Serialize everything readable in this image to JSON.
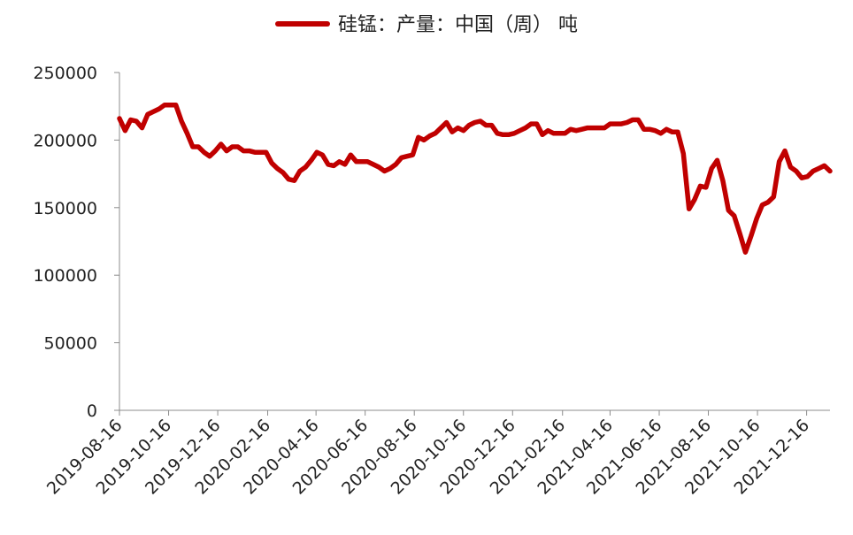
{
  "chart_data": {
    "type": "line",
    "legend": {
      "label": "硅锰：产量：中国（周）  吨",
      "placement": "top-center"
    },
    "ylim": [
      0,
      250000
    ],
    "yticks": [
      "0",
      "50000",
      "100000",
      "150000",
      "200000",
      "250000"
    ],
    "xtick_labels": [
      "2019-08-16",
      "2019-10-16",
      "2019-12-16",
      "2020-02-16",
      "2020-04-16",
      "2020-06-16",
      "2020-08-16",
      "2020-10-16",
      "2020-12-16",
      "2021-02-16",
      "2021-04-16",
      "2021-06-16",
      "2021-08-16",
      "2021-10-16",
      "2021-12-16"
    ],
    "grid": false,
    "line_color": "#c00000",
    "series": [
      {
        "name": "硅锰：产量：中国（周）",
        "points": [
          [
            "2019-08-16",
            216000
          ],
          [
            "2019-08-23",
            207000
          ],
          [
            "2019-08-30",
            215000
          ],
          [
            "2019-09-06",
            214000
          ],
          [
            "2019-09-13",
            209000
          ],
          [
            "2019-09-20",
            219000
          ],
          [
            "2019-09-27",
            221000
          ],
          [
            "2019-10-04",
            223000
          ],
          [
            "2019-10-11",
            226000
          ],
          [
            "2019-10-18",
            226000
          ],
          [
            "2019-10-25",
            226000
          ],
          [
            "2019-11-01",
            214000
          ],
          [
            "2019-11-08",
            205000
          ],
          [
            "2019-11-15",
            195000
          ],
          [
            "2019-11-22",
            195000
          ],
          [
            "2019-11-29",
            191000
          ],
          [
            "2019-12-06",
            188000
          ],
          [
            "2019-12-13",
            192000
          ],
          [
            "2019-12-20",
            197000
          ],
          [
            "2019-12-27",
            192000
          ],
          [
            "2020-01-03",
            195000
          ],
          [
            "2020-01-10",
            195000
          ],
          [
            "2020-01-17",
            192000
          ],
          [
            "2020-01-24",
            192000
          ],
          [
            "2020-01-31",
            191000
          ],
          [
            "2020-02-07",
            191000
          ],
          [
            "2020-02-14",
            191000
          ],
          [
            "2020-02-21",
            183000
          ],
          [
            "2020-02-28",
            179000
          ],
          [
            "2020-03-06",
            176000
          ],
          [
            "2020-03-13",
            171000
          ],
          [
            "2020-03-20",
            170000
          ],
          [
            "2020-03-27",
            177000
          ],
          [
            "2020-04-03",
            180000
          ],
          [
            "2020-04-10",
            185000
          ],
          [
            "2020-04-17",
            191000
          ],
          [
            "2020-04-24",
            189000
          ],
          [
            "2020-05-01",
            182000
          ],
          [
            "2020-05-08",
            181000
          ],
          [
            "2020-05-15",
            184000
          ],
          [
            "2020-05-22",
            182000
          ],
          [
            "2020-05-29",
            189000
          ],
          [
            "2020-06-05",
            184000
          ],
          [
            "2020-06-12",
            184000
          ],
          [
            "2020-06-19",
            184000
          ],
          [
            "2020-06-26",
            182000
          ],
          [
            "2020-07-03",
            180000
          ],
          [
            "2020-07-10",
            177000
          ],
          [
            "2020-07-17",
            179000
          ],
          [
            "2020-07-24",
            182000
          ],
          [
            "2020-07-31",
            187000
          ],
          [
            "2020-08-07",
            188000
          ],
          [
            "2020-08-14",
            189000
          ],
          [
            "2020-08-21",
            202000
          ],
          [
            "2020-08-28",
            200000
          ],
          [
            "2020-09-04",
            203000
          ],
          [
            "2020-09-11",
            205000
          ],
          [
            "2020-09-18",
            209000
          ],
          [
            "2020-09-25",
            213000
          ],
          [
            "2020-10-02",
            206000
          ],
          [
            "2020-10-09",
            209000
          ],
          [
            "2020-10-16",
            207000
          ],
          [
            "2020-10-23",
            211000
          ],
          [
            "2020-10-30",
            213000
          ],
          [
            "2020-11-06",
            214000
          ],
          [
            "2020-11-13",
            211000
          ],
          [
            "2020-11-20",
            211000
          ],
          [
            "2020-11-27",
            205000
          ],
          [
            "2020-12-04",
            204000
          ],
          [
            "2020-12-11",
            204000
          ],
          [
            "2020-12-18",
            205000
          ],
          [
            "2020-12-25",
            207000
          ],
          [
            "2021-01-01",
            209000
          ],
          [
            "2021-01-08",
            212000
          ],
          [
            "2021-01-15",
            212000
          ],
          [
            "2021-01-22",
            204000
          ],
          [
            "2021-01-29",
            207000
          ],
          [
            "2021-02-05",
            205000
          ],
          [
            "2021-02-12",
            205000
          ],
          [
            "2021-02-19",
            205000
          ],
          [
            "2021-02-26",
            208000
          ],
          [
            "2021-03-05",
            207000
          ],
          [
            "2021-03-12",
            208000
          ],
          [
            "2021-03-19",
            209000
          ],
          [
            "2021-03-26",
            209000
          ],
          [
            "2021-04-02",
            209000
          ],
          [
            "2021-04-09",
            209000
          ],
          [
            "2021-04-16",
            212000
          ],
          [
            "2021-04-23",
            212000
          ],
          [
            "2021-04-30",
            212000
          ],
          [
            "2021-05-07",
            213000
          ],
          [
            "2021-05-14",
            215000
          ],
          [
            "2021-05-21",
            215000
          ],
          [
            "2021-05-28",
            208000
          ],
          [
            "2021-06-04",
            208000
          ],
          [
            "2021-06-11",
            207000
          ],
          [
            "2021-06-18",
            205000
          ],
          [
            "2021-06-25",
            208000
          ],
          [
            "2021-07-02",
            206000
          ],
          [
            "2021-07-09",
            206000
          ],
          [
            "2021-07-16",
            190000
          ],
          [
            "2021-07-23",
            149000
          ],
          [
            "2021-07-30",
            156000
          ],
          [
            "2021-08-06",
            166000
          ],
          [
            "2021-08-13",
            165000
          ],
          [
            "2021-08-20",
            179000
          ],
          [
            "2021-08-27",
            185000
          ],
          [
            "2021-09-03",
            170000
          ],
          [
            "2021-09-10",
            148000
          ],
          [
            "2021-09-17",
            144000
          ],
          [
            "2021-09-24",
            131000
          ],
          [
            "2021-10-01",
            117000
          ],
          [
            "2021-10-08",
            129000
          ],
          [
            "2021-10-15",
            142000
          ],
          [
            "2021-10-22",
            152000
          ],
          [
            "2021-10-29",
            154000
          ],
          [
            "2021-11-05",
            158000
          ],
          [
            "2021-11-12",
            184000
          ],
          [
            "2021-11-19",
            192000
          ],
          [
            "2021-11-26",
            180000
          ],
          [
            "2021-12-03",
            177000
          ],
          [
            "2021-12-10",
            172000
          ],
          [
            "2021-12-17",
            173000
          ],
          [
            "2021-12-24",
            177000
          ],
          [
            "2021-12-31",
            179000
          ],
          [
            "2022-01-07",
            181000
          ],
          [
            "2022-01-14",
            177000
          ]
        ]
      }
    ]
  }
}
